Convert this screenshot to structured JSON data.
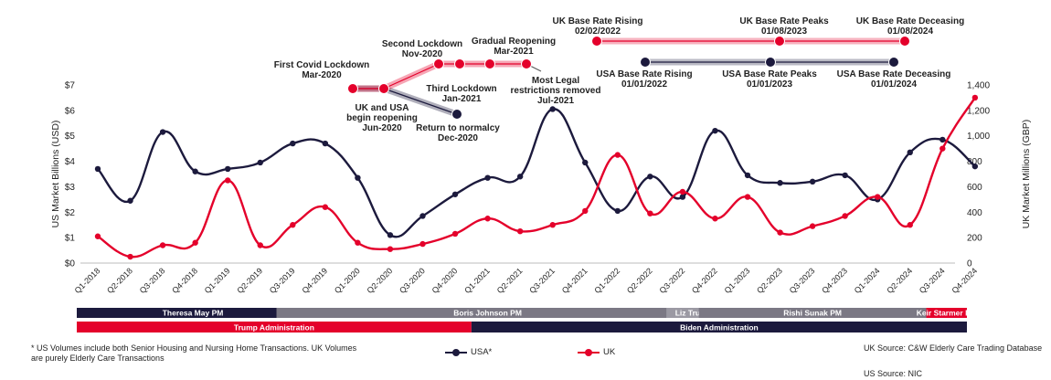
{
  "chart_data": {
    "type": "line",
    "categories": [
      "Q1-2018",
      "Q2-2018",
      "Q3-2018",
      "Q4-2018",
      "Q1-2019",
      "Q2-2019",
      "Q3-2019",
      "Q4-2019",
      "Q1-2020",
      "Q2-2020",
      "Q3-2020",
      "Q4-2020",
      "Q1-2021",
      "Q2-2021",
      "Q3-2021",
      "Q4-2021",
      "Q1-2022",
      "Q2-2022",
      "Q3-2022",
      "Q4-2022",
      "Q1-2023",
      "Q2-2023",
      "Q3-2023",
      "Q4-2023",
      "Q1-2024",
      "Q2-2024",
      "Q3-2024",
      "Q4-2024"
    ],
    "series": [
      {
        "name": "USA*",
        "axis": "left",
        "color": "#1c1a3d",
        "values": [
          3.7,
          2.45,
          5.15,
          3.6,
          3.7,
          3.95,
          4.7,
          4.7,
          3.35,
          1.1,
          1.85,
          2.7,
          3.35,
          3.4,
          6.05,
          3.95,
          2.05,
          3.4,
          2.6,
          5.2,
          3.45,
          3.15,
          3.2,
          3.45,
          2.5,
          4.35,
          4.85,
          3.8
        ]
      },
      {
        "name": "UK",
        "axis": "right",
        "color": "#e4002b",
        "values": [
          210,
          50,
          140,
          160,
          650,
          140,
          300,
          440,
          160,
          110,
          150,
          230,
          350,
          250,
          300,
          410,
          850,
          390,
          560,
          350,
          520,
          240,
          290,
          370,
          520,
          300,
          900,
          1300
        ]
      }
    ],
    "y_left": {
      "label": "US Market Billions (USD)",
      "min": 0,
      "max": 7,
      "ticks": [
        "$0",
        "$1",
        "$2",
        "$3",
        "$4",
        "$5",
        "$6",
        "$7"
      ]
    },
    "y_right": {
      "label": "UK Market Millions (GBP)",
      "min": 0,
      "max": 1400,
      "ticks": [
        "0",
        "200",
        "400",
        "600",
        "800",
        "1,000",
        "1,200",
        "1,400"
      ]
    },
    "grid": false,
    "timeline_uk": [
      {
        "title": "First Covid Lockdown",
        "date": "Mar-2020"
      },
      {
        "title": "Second Lockdown",
        "date": "Nov-2020"
      },
      {
        "title": "Third Lockdown",
        "date": "Jan-2021"
      },
      {
        "title": "Gradual Reopening",
        "date": "Mar-2021"
      },
      {
        "title": "Most Legal",
        "title2": "restrictions removed",
        "date": "Jul-2021"
      }
    ],
    "timeline_joint": [
      {
        "title": "UK and USA",
        "title2": "begin reopening",
        "date": "Jun-2020"
      },
      {
        "title": "Return to normalcy",
        "date": "Dec-2020"
      }
    ],
    "rates_uk": [
      {
        "title": "UK Base Rate Rising",
        "date": "02/02/2022"
      },
      {
        "title": "UK Base Rate Peaks",
        "date": "01/08/2023"
      },
      {
        "title": "UK Base Rate Deceasing",
        "date": "01/08/2024"
      }
    ],
    "rates_usa": [
      {
        "title": "USA Base Rate Rising",
        "date": "01/01/2022"
      },
      {
        "title": "USA Base Rate Peaks",
        "date": "01/01/2023"
      },
      {
        "title": "USA Base Rate Deceasing",
        "date": "01/01/2024"
      }
    ],
    "pm_bands": [
      {
        "label": "Theresa May PM",
        "from": "Q1-2018",
        "to": "Q3-2019",
        "color": "#1c1a3d"
      },
      {
        "label": "Boris Johnson PM",
        "from": "Q3-2019",
        "to": "Q3-2022",
        "color": "#7b7884"
      },
      {
        "label": "Liz Truss PM",
        "from": "Q3-2022",
        "to": "Q4-2022",
        "color": "#9b99a3"
      },
      {
        "label": "Rishi Sunak PM",
        "from": "Q4-2022",
        "to": "Q2-2024",
        "color": "#7b7884"
      },
      {
        "label": "Keir Starmer PM",
        "from": "Q3-2024",
        "to": "Q4-2024",
        "color": "#e4002b"
      }
    ],
    "admin_bands": [
      {
        "label": "Trump Administration",
        "from": "Q1-2018",
        "to": "Q4-2020",
        "color": "#e4002b"
      },
      {
        "label": "Biden Administration",
        "from": "Q1-2021",
        "to": "Q4-2024",
        "color": "#1c1a3d"
      }
    ]
  },
  "footnote": "* US Volumes include both Senior Housing and Nursing Home Transactions. UK Volumes are purely Elderly Care Transactions",
  "legend": {
    "usa": "USA*",
    "uk": "UK"
  },
  "sources": {
    "uk": "UK Source: C&W Elderly Care Trading Database",
    "us": "US Source: NIC"
  }
}
